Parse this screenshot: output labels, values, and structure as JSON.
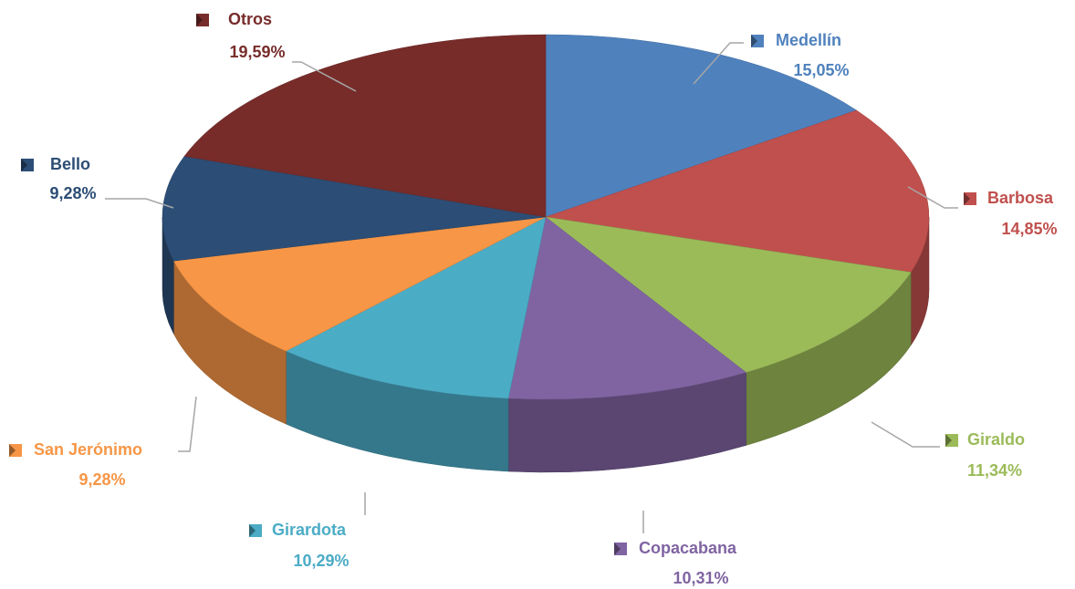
{
  "chart_data": {
    "type": "pie",
    "categories": [
      "Medellín",
      "Barbosa",
      "Giraldo",
      "Copacabana",
      "Girardota",
      "San Jerónimo",
      "Bello",
      "Otros"
    ],
    "values": [
      15.05,
      14.85,
      11.34,
      10.31,
      10.29,
      9.28,
      9.28,
      19.59
    ],
    "value_labels": [
      "15,05%",
      "14,85%",
      "11,34%",
      "10,31%",
      "10,29%",
      "9,28%",
      "9,28%",
      "19,59%"
    ],
    "colors": [
      "#4f81bd",
      "#c0504d",
      "#9bbb59",
      "#8064a2",
      "#4bacc6",
      "#f79646",
      "#2c4d75",
      "#772c2a"
    ]
  }
}
